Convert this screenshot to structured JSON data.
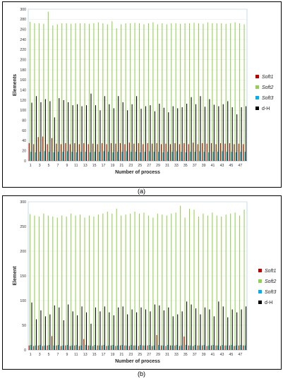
{
  "captions": {
    "a": "(a)",
    "b": "(b)"
  },
  "colors": {
    "soft1": "#c00000",
    "soft2": "#92d050",
    "soft3": "#00b0f0",
    "dh": "#000000"
  },
  "chart_data": [
    {
      "type": "bar",
      "xlabel": "Number of process",
      "ylabel": "Elements",
      "ylim": [
        0,
        300
      ],
      "yticks": [
        0,
        20,
        40,
        60,
        80,
        100,
        120,
        140,
        160,
        180,
        200,
        220,
        240,
        260,
        280,
        300
      ],
      "x": [
        1,
        2,
        3,
        4,
        5,
        6,
        7,
        8,
        9,
        10,
        11,
        12,
        13,
        14,
        15,
        16,
        17,
        18,
        19,
        20,
        21,
        22,
        23,
        24,
        25,
        26,
        27,
        28,
        29,
        30,
        31,
        32,
        33,
        34,
        35,
        36,
        37,
        38,
        39,
        40,
        41,
        42,
        43,
        44,
        45,
        46,
        47,
        48
      ],
      "xtick_labels": [
        "1",
        "3",
        "5",
        "7",
        "9",
        "11",
        "13",
        "15",
        "17",
        "19",
        "21",
        "23",
        "25",
        "27",
        "29",
        "31",
        "33",
        "35",
        "37",
        "39",
        "41",
        "43",
        "45",
        "47"
      ],
      "legend": "right",
      "series": [
        {
          "name": "Soft1",
          "key": "soft1",
          "values": [
            35,
            33,
            47,
            48,
            33,
            45,
            34,
            33,
            35,
            33,
            35,
            33,
            35,
            33,
            34,
            33,
            35,
            33,
            35,
            34,
            35,
            33,
            36,
            34,
            35,
            33,
            35,
            34,
            35,
            33,
            34,
            33,
            35,
            33,
            35,
            33,
            36,
            33,
            35,
            34,
            35,
            33,
            35,
            34,
            35,
            33,
            34,
            33
          ]
        },
        {
          "name": "Soft2",
          "key": "soft2",
          "values": [
            275,
            272,
            272,
            271,
            295,
            268,
            270,
            272,
            272,
            271,
            272,
            272,
            272,
            271,
            272,
            274,
            272,
            270,
            276,
            262,
            270,
            272,
            272,
            273,
            272,
            270,
            272,
            274,
            270,
            272,
            270,
            272,
            272,
            271,
            272,
            272,
            273,
            272,
            271,
            274,
            272,
            272,
            272,
            271,
            272,
            274,
            272,
            270
          ]
        },
        {
          "name": "Soft3",
          "key": "soft3",
          "values": [
            18,
            17,
            18,
            19,
            18,
            17,
            18,
            18,
            19,
            18,
            17,
            18,
            18,
            17,
            18,
            18,
            19,
            18,
            17,
            18,
            18,
            19,
            18,
            18,
            17,
            18,
            19,
            18,
            18,
            17,
            18,
            18,
            19,
            18,
            17,
            18,
            18,
            19,
            18,
            17,
            18,
            18,
            19,
            18,
            18,
            17,
            18,
            18
          ]
        },
        {
          "name": "d-H",
          "key": "dh",
          "values": [
            115,
            128,
            116,
            122,
            118,
            86,
            124,
            120,
            116,
            110,
            112,
            108,
            110,
            133,
            110,
            100,
            128,
            112,
            104,
            128,
            116,
            100,
            112,
            128,
            103,
            108,
            110,
            98,
            113,
            105,
            96,
            108,
            104,
            106,
            113,
            126,
            112,
            128,
            107,
            122,
            111,
            108,
            112,
            118,
            106,
            92,
            106,
            108
          ]
        }
      ]
    },
    {
      "type": "bar",
      "xlabel": "Number of process",
      "ylabel": "Element",
      "ylim": [
        0,
        300
      ],
      "yticks": [
        0,
        50,
        100,
        150,
        200,
        250,
        300
      ],
      "x": [
        1,
        2,
        3,
        4,
        5,
        6,
        7,
        8,
        9,
        10,
        11,
        12,
        13,
        14,
        15,
        16,
        17,
        18,
        19,
        20,
        21,
        22,
        23,
        24,
        25,
        26,
        27,
        28,
        29,
        30,
        31,
        32,
        33,
        34,
        35,
        36,
        37,
        38,
        39,
        40,
        41,
        42,
        43,
        44,
        45,
        46,
        47,
        48
      ],
      "xtick_labels": [
        "1",
        "3",
        "5",
        "7",
        "9",
        "11",
        "13",
        "15",
        "17",
        "19",
        "21",
        "23",
        "25",
        "27",
        "29",
        "31",
        "33",
        "35",
        "37",
        "39",
        "41",
        "43",
        "45",
        "47"
      ],
      "legend": "right",
      "series": [
        {
          "name": "Soft1",
          "key": "soft1",
          "values": [
            9,
            8,
            9,
            8,
            9,
            28,
            9,
            8,
            9,
            8,
            9,
            8,
            22,
            9,
            8,
            9,
            9,
            8,
            9,
            8,
            9,
            9,
            8,
            9,
            8,
            9,
            9,
            8,
            30,
            9,
            8,
            9,
            9,
            8,
            27,
            9,
            8,
            9,
            9,
            8,
            9,
            9,
            8,
            9,
            9,
            8,
            9,
            9
          ]
        },
        {
          "name": "Soft2",
          "key": "soft2",
          "values": [
            275,
            272,
            270,
            276,
            272,
            270,
            268,
            272,
            270,
            276,
            272,
            274,
            268,
            272,
            270,
            274,
            276,
            280,
            276,
            286,
            272,
            274,
            276,
            280,
            276,
            278,
            272,
            268,
            276,
            274,
            272,
            276,
            278,
            292,
            268,
            286,
            284,
            270,
            276,
            272,
            278,
            272,
            270,
            274,
            276,
            278,
            272,
            284
          ]
        },
        {
          "name": "Soft3",
          "key": "soft3",
          "values": [
            10,
            9,
            10,
            9,
            10,
            9,
            10,
            9,
            10,
            9,
            10,
            9,
            10,
            9,
            10,
            9,
            10,
            9,
            10,
            9,
            10,
            9,
            10,
            9,
            10,
            9,
            10,
            9,
            10,
            9,
            10,
            9,
            10,
            9,
            10,
            9,
            10,
            9,
            10,
            9,
            10,
            9,
            10,
            9,
            10,
            9,
            10,
            9
          ]
        },
        {
          "name": "d-H",
          "key": "dh",
          "values": [
            96,
            62,
            80,
            68,
            72,
            90,
            86,
            60,
            92,
            78,
            70,
            88,
            76,
            53,
            86,
            78,
            88,
            76,
            70,
            86,
            88,
            72,
            82,
            76,
            86,
            82,
            78,
            92,
            90,
            80,
            86,
            68,
            72,
            78,
            98,
            92,
            84,
            72,
            86,
            82,
            68,
            98,
            88,
            66,
            82,
            76,
            82,
            88
          ]
        }
      ]
    }
  ]
}
